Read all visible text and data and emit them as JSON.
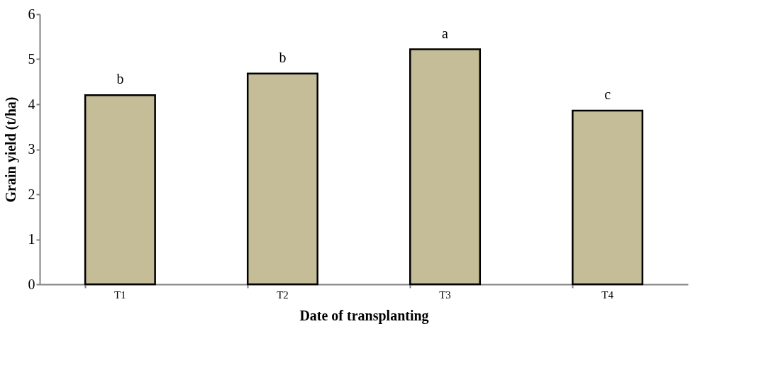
{
  "chart_data": {
    "type": "bar",
    "xlabel": "Date of transplanting",
    "ylabel": "Grain yield (t/ha)",
    "categories": [
      "T1",
      "T2",
      "T3",
      "T4"
    ],
    "values": [
      4.2,
      4.68,
      5.22,
      3.86
    ],
    "color": "#c4bd97",
    "ylim": [
      0,
      6
    ],
    "yticks": [
      0,
      1,
      2,
      3,
      4,
      5,
      6
    ],
    "grid": false,
    "annotations": [
      {
        "text": "b",
        "x": "T1",
        "y": 4.2
      },
      {
        "text": "b",
        "x": "T2",
        "y": 4.68
      },
      {
        "text": "a",
        "x": "T3",
        "y": 5.22
      },
      {
        "text": "c",
        "x": "T4",
        "y": 3.86
      }
    ]
  }
}
